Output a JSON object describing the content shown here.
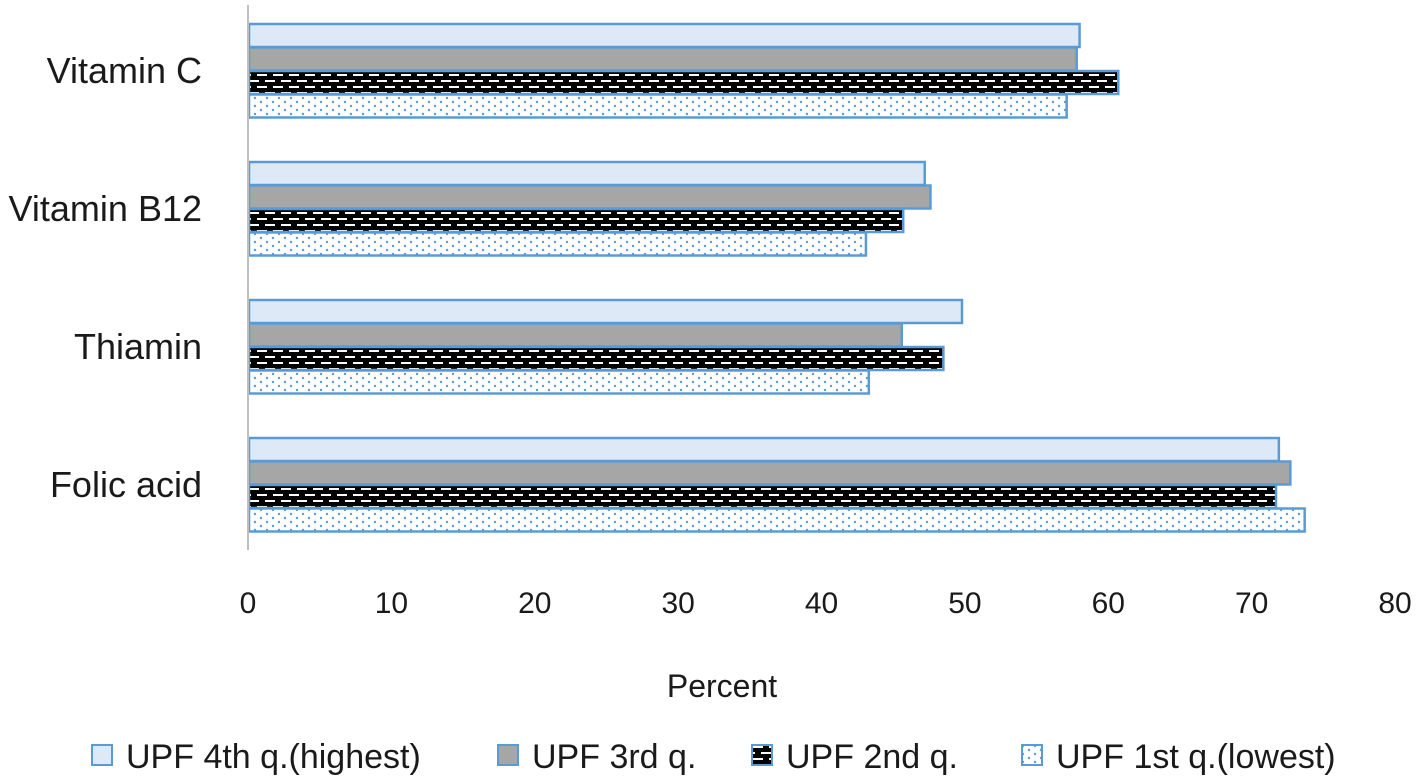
{
  "chart_data": {
    "type": "bar",
    "orientation": "horizontal",
    "categories": [
      "Vitamin C",
      "Vitamin B12",
      "Thiamin",
      "Folic acid"
    ],
    "series": [
      {
        "name": "UPF 4th q.(highest)",
        "values": [
          58.0,
          47.2,
          49.8,
          71.9
        ],
        "pattern": "light-blue-fill"
      },
      {
        "name": "UPF 3rd q.",
        "values": [
          57.8,
          47.6,
          45.6,
          72.7
        ],
        "pattern": "grey-fill"
      },
      {
        "name": "UPF 2nd q.",
        "values": [
          60.7,
          45.7,
          48.5,
          71.7
        ],
        "pattern": "brick"
      },
      {
        "name": "UPF 1st q.(lowest)",
        "values": [
          57.1,
          43.1,
          43.3,
          73.7
        ],
        "pattern": "dots"
      }
    ],
    "xlabel": "Percent",
    "ylabel": "",
    "xlim": [
      0,
      80
    ],
    "xticks": [
      0,
      10,
      20,
      30,
      40,
      50,
      60,
      70,
      80
    ],
    "grid": false,
    "legend_position": "bottom",
    "colors": {
      "light_blue": "#dde9f7",
      "grey": "#a6a6a6",
      "outline": "#5b9bd5",
      "black": "#000000",
      "axis": "#bfbfbf"
    }
  }
}
